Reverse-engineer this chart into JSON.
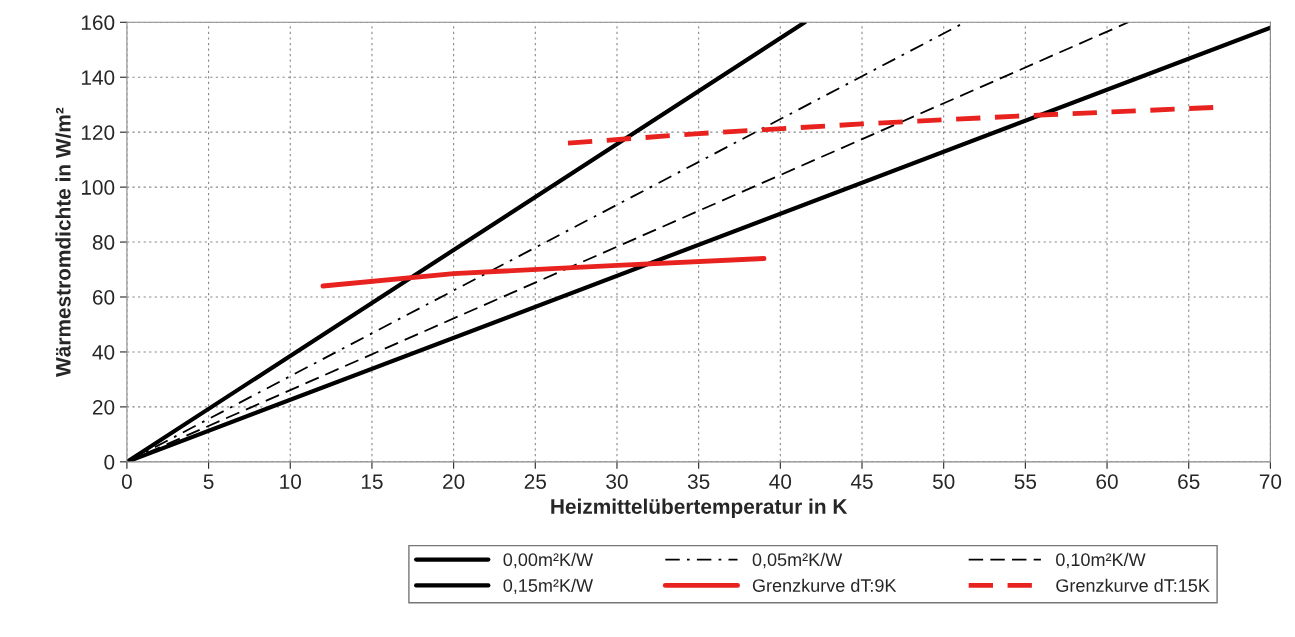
{
  "chart_data": {
    "type": "line",
    "xlabel": "Heizmittelübertemperatur in K",
    "ylabel": "Wärmestromdichte in W/m²",
    "xlim": [
      0,
      70
    ],
    "ylim": [
      0,
      160
    ],
    "xticks": [
      0,
      5,
      10,
      15,
      20,
      25,
      30,
      35,
      40,
      45,
      50,
      55,
      60,
      65,
      70
    ],
    "yticks": [
      0,
      20,
      40,
      60,
      80,
      100,
      120,
      140,
      160
    ],
    "grid": true,
    "legend": "bottom",
    "marker": "none",
    "series": [
      {
        "name": "0,00m²K/W",
        "color": "#000000",
        "line_style": "solid",
        "x": [
          0,
          41.5
        ],
        "values": [
          0,
          160
        ]
      },
      {
        "name": "0,05m²K/W",
        "color": "#000000",
        "line_style": "dashdot",
        "x": [
          0,
          51.3
        ],
        "values": [
          0,
          160
        ]
      },
      {
        "name": "0,10m²K/W",
        "color": "#000000",
        "line_style": "dashed",
        "x": [
          0,
          61.3
        ],
        "values": [
          0,
          160
        ]
      },
      {
        "name": "0,15m²K/W",
        "color": "#000000",
        "line_style": "solid",
        "x": [
          0,
          70
        ],
        "values": [
          0,
          158
        ]
      },
      {
        "name": "Grenzkurve dT:9K",
        "color": "#e8231f",
        "line_style": "solid",
        "x": [
          12,
          20,
          30,
          39
        ],
        "values": [
          64,
          68.5,
          71.5,
          74
        ]
      },
      {
        "name": "Grenzkurve dT:15K",
        "color": "#e8231f",
        "line_style": "dashed",
        "x": [
          27,
          35,
          45,
          55,
          66.5
        ],
        "values": [
          116,
          119.5,
          123,
          126,
          129
        ]
      }
    ]
  }
}
